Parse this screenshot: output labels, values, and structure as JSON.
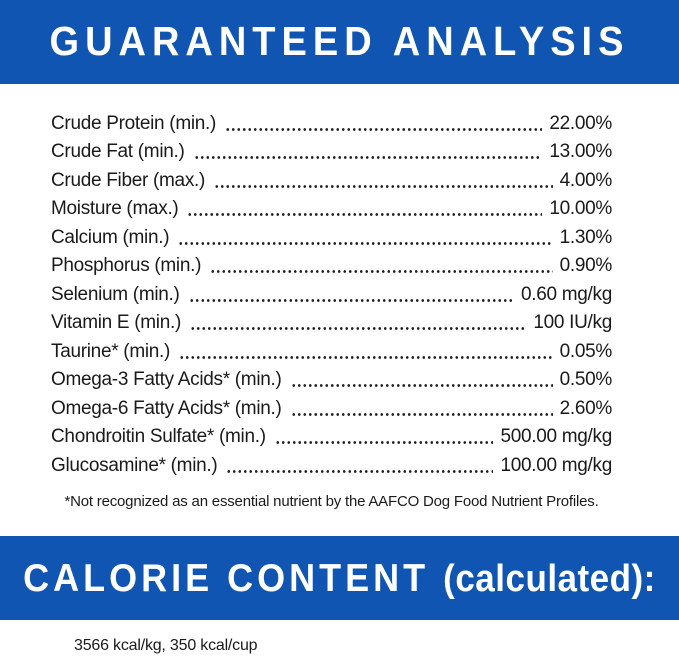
{
  "header": {
    "title": "GUARANTEED ANALYSIS"
  },
  "analysis": {
    "rows": [
      {
        "label": "Crude Protein (min.)",
        "value": "22.00%"
      },
      {
        "label": "Crude Fat (min.)",
        "value": "13.00%"
      },
      {
        "label": "Crude Fiber (max.)",
        "value": "4.00%"
      },
      {
        "label": "Moisture (max.)",
        "value": "10.00%"
      },
      {
        "label": "Calcium (min.)",
        "value": "1.30%"
      },
      {
        "label": "Phosphorus (min.)",
        "value": "0.90%"
      },
      {
        "label": "Selenium (min.)",
        "value": "0.60 mg/kg"
      },
      {
        "label": "Vitamin E (min.)",
        "value": "100 IU/kg"
      },
      {
        "label": "Taurine* (min.)",
        "value": "0.05%"
      },
      {
        "label": "Omega-3 Fatty Acids* (min.)",
        "value": "0.50%"
      },
      {
        "label": "Omega-6 Fatty Acids* (min.)",
        "value": "2.60%"
      },
      {
        "label": "Chondroitin Sulfate* (min.)",
        "value": "500.00 mg/kg"
      },
      {
        "label": "Glucosamine* (min.)",
        "value": "100.00 mg/kg"
      }
    ],
    "footnote": "*Not recognized as an essential nutrient by the AAFCO Dog Food Nutrient Profiles."
  },
  "calorie": {
    "title_main": "CALORIE CONTENT ",
    "title_paren": "(calculated):",
    "value": "3566 kcal/kg, 350 kcal/cup"
  },
  "colors": {
    "banner_blue": "#1155b2",
    "banner_text": "#ffffff",
    "body_text": "#1a1a1a"
  }
}
